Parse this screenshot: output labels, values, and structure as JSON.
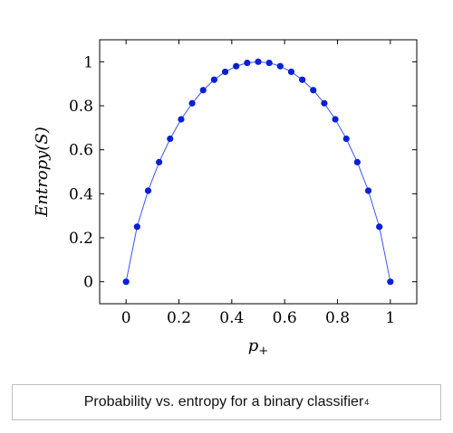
{
  "chart_data": {
    "type": "line",
    "x": [
      0,
      0.04167,
      0.08333,
      0.125,
      0.16667,
      0.20833,
      0.25,
      0.29167,
      0.33333,
      0.375,
      0.41667,
      0.45833,
      0.5,
      0.54167,
      0.58333,
      0.625,
      0.66667,
      0.70833,
      0.75,
      0.79167,
      0.83333,
      0.875,
      0.91667,
      0.95833,
      1
    ],
    "series": [
      {
        "values": [
          0,
          0.2499,
          0.4138,
          0.5436,
          0.65,
          0.7383,
          0.8113,
          0.8709,
          0.9183,
          0.9544,
          0.9799,
          0.995,
          1.0,
          0.995,
          0.9799,
          0.9544,
          0.9183,
          0.8709,
          0.8113,
          0.7383,
          0.65,
          0.5436,
          0.4138,
          0.2499,
          0
        ],
        "color": "#0a1fd6"
      }
    ],
    "xlabel": "p",
    "xlabel_sub": "+",
    "ylabel": "Entropy(S)",
    "xlim": [
      -0.1,
      1.1
    ],
    "ylim": [
      -0.1,
      1.1
    ],
    "xticks": [
      "0",
      "0.2",
      "0.4",
      "0.6",
      "0.8",
      "1"
    ],
    "yticks": [
      "0",
      "0.2",
      "0.4",
      "0.6",
      "0.8",
      "1"
    ],
    "grid": false,
    "line_color": "#3b55f5",
    "marker_color": "#0a1fd6"
  },
  "caption": {
    "text": "Probability vs. entropy for a binary classifier",
    "footnote": "4"
  }
}
